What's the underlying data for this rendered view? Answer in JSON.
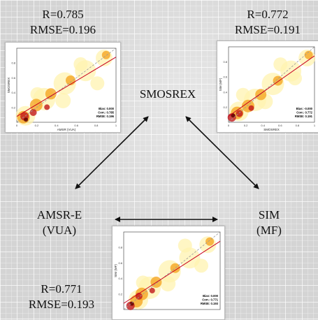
{
  "nodes": {
    "smosrex": "SMOSREX",
    "amsr_line1": "AMSR-E",
    "amsr_line2": "(VUA)",
    "sim_line1": "SIM",
    "sim_line2": "(MF)"
  },
  "stats": {
    "amsr_smosrex": {
      "r": "R=0.785",
      "rmse": "RMSE=0.196"
    },
    "sim_smosrex": {
      "r": "R=0.772",
      "rmse": "RMSE=0.191"
    },
    "amsr_sim": {
      "r": "R=0.771",
      "rmse": "RMSE=0.193"
    }
  },
  "plots": {
    "amsr_smosrex": {
      "ylabel": "SMOSREX",
      "xlabel": "AMSR (VUA)",
      "bias": "Bias: 0.000",
      "corr": "Corr.: 0.785",
      "rmse": "RMSE: 0.196",
      "xticks": [
        "0",
        "0.2",
        "0.4",
        "0.6",
        "0.8",
        "1"
      ],
      "yticks": [
        "0.2",
        "0.4",
        "0.6",
        "0.8"
      ]
    },
    "sim_smosrex": {
      "ylabel": "SIM (MF)",
      "xlabel": "SMOSREX",
      "bias": "Bias: -0.000",
      "corr": "Corr.: 0.772",
      "rmse": "RMSE: 0.191",
      "xticks": [
        "0",
        "0.2",
        "0.4",
        "0.6",
        "0.8",
        "1"
      ],
      "yticks": [
        "0.2",
        "0.4",
        "0.6",
        "0.8"
      ]
    },
    "amsr_sim": {
      "ylabel": "SIM (MF)",
      "xlabel": "",
      "bias": "Bias: 0.000",
      "corr": "Corr.: 0.771",
      "rmse": "RMSE: 0.193",
      "xticks": [],
      "yticks": [
        "0.2",
        "0.4",
        "0.6",
        "0.8"
      ]
    }
  },
  "colors": {
    "heat_low": "#fff3b0",
    "heat_mid": "#f5a623",
    "heat_high": "#c0181a",
    "heat_core": "#5a0000",
    "fit_line": "#c8001e",
    "one_to_one": "#999999",
    "arrow": "#111111"
  }
}
